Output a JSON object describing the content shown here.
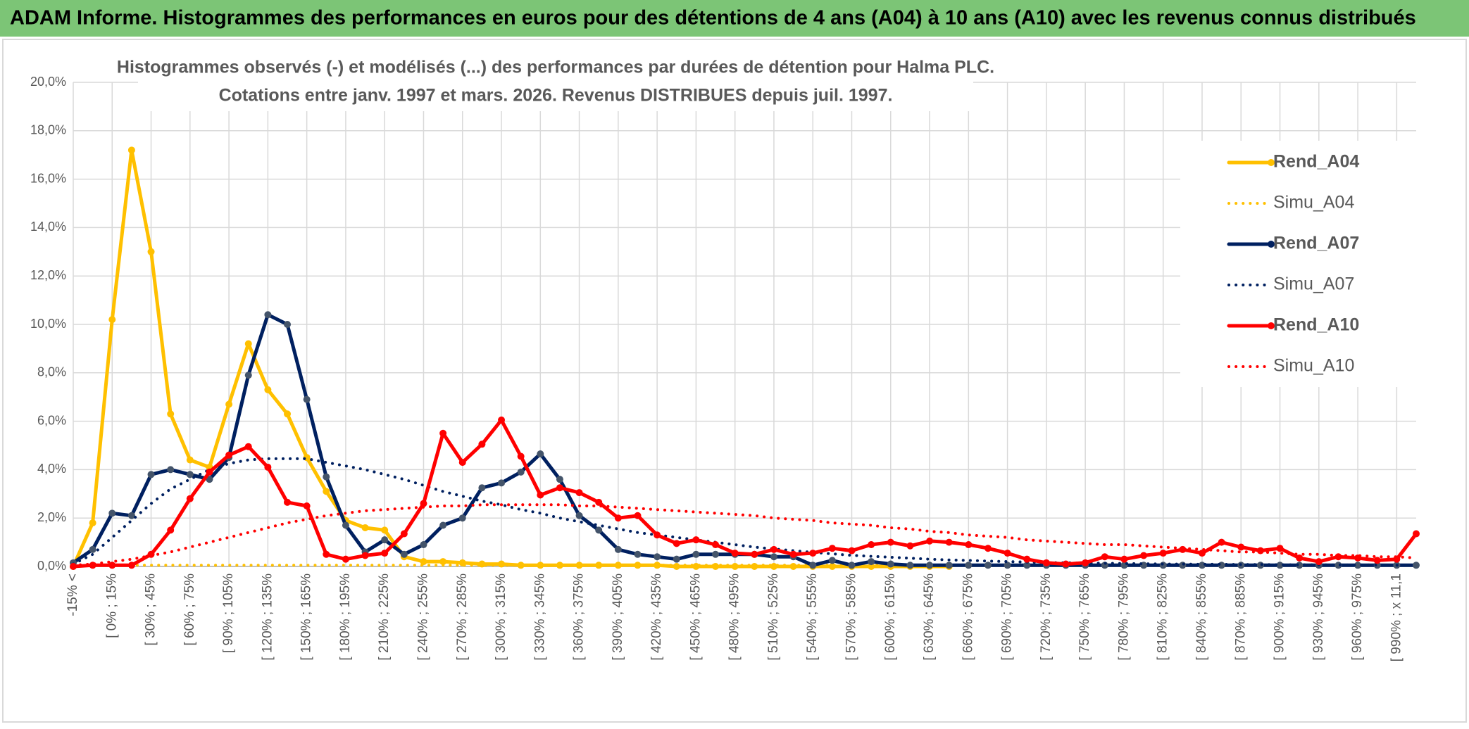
{
  "chart_data": {
    "type": "line",
    "header": "ADAM Informe. Histogrammes des performances en euros pour des détentions de 4 ans (A04) à 10 ans (A10) avec les revenus connus distribués",
    "title": "Histogrammes observés (-) et modélisés (...) des performances par durées de détention pour Halma PLC.",
    "subtitle": "Cotations entre janv. 1997 et mars. 2026. Revenus DISTRIBUES depuis juil. 1997.",
    "categories": [
      "-15% <",
      null,
      "[ 0% ; 15%",
      null,
      "[ 30% ; 45%",
      null,
      "[ 60% ; 75%",
      null,
      "[ 90% ; 105%",
      null,
      "[ 120% ; 135%",
      null,
      "[ 150% ; 165%",
      null,
      "[ 180% ; 195%",
      null,
      "[ 210% ; 225%",
      null,
      "[ 240% ; 255%",
      null,
      "[ 270% ; 285%",
      null,
      "[ 300% ; 315%",
      null,
      "[ 330% ; 345%",
      null,
      "[ 360% ; 375%",
      null,
      "[ 390% ; 405%",
      null,
      "[ 420% ; 435%",
      null,
      "[ 450% ; 465%",
      null,
      "[ 480% ; 495%",
      null,
      "[ 510% ; 525%",
      null,
      "[ 540% ; 555%",
      null,
      "[ 570% ; 585%",
      null,
      "[ 600% ; 615%",
      null,
      "[ 630% ; 645%",
      null,
      "[ 660% ; 675%",
      null,
      "[ 690% ; 705%",
      null,
      "[ 720% ; 735%",
      null,
      "[ 750% ; 765%",
      null,
      "[ 780% ; 795%",
      null,
      "[ 810% ; 825%",
      null,
      "[ 840% ; 855%",
      null,
      "[ 870% ; 885%",
      null,
      "[ 900% ; 915%",
      null,
      "[ 930% ; 945%",
      null,
      "[ 960% ; 975%",
      null,
      "[ 990% ; x 11,1",
      null
    ],
    "series": [
      {
        "name": "Rend_A04",
        "color": "#ffc000",
        "style": "solid",
        "values": [
          0,
          1.8,
          10.2,
          17.2,
          13.0,
          6.3,
          4.4,
          4.1,
          6.7,
          9.2,
          7.3,
          6.3,
          4.5,
          3.1,
          1.9,
          1.6,
          1.5,
          0.4,
          0.2,
          0.2,
          0.15,
          0.1,
          0.1,
          0.05,
          0.05,
          0.05,
          0.05,
          0.05,
          0.05,
          0.05,
          0.05,
          0,
          0,
          0,
          0,
          0,
          0,
          0,
          0,
          0,
          0,
          0,
          0,
          0,
          0,
          0,
          null,
          null,
          null,
          null,
          null,
          null,
          null,
          null,
          null,
          null,
          null,
          null,
          null,
          null,
          null,
          null,
          null,
          null,
          null,
          null,
          null,
          null,
          null,
          null
        ]
      },
      {
        "name": "Simu_A04",
        "color": "#ffc000",
        "style": "dotted",
        "values": [
          0.05,
          0.05,
          0.05,
          0.05,
          0.05,
          0.05,
          0.05,
          0.05,
          0.05,
          0.05,
          0.05,
          0.05,
          0.05,
          0.05,
          0.05,
          0.05,
          0.05,
          0.05,
          0.05,
          0.05,
          0.05,
          0.05,
          0.05,
          0.05,
          0.05,
          0.05,
          0.05,
          0.05,
          0.05,
          0.05,
          0.05,
          0.05,
          0.05,
          0.05,
          0.05,
          0.05,
          0.05,
          0.05,
          0.05,
          0.05,
          0.05,
          0.05,
          0.05,
          0.05,
          null,
          null,
          null,
          null,
          null,
          null,
          null,
          null,
          null,
          null,
          null,
          null,
          null,
          null,
          null,
          null,
          null,
          null,
          null,
          null,
          null,
          null,
          null,
          null,
          null,
          null
        ]
      },
      {
        "name": "Rend_A07",
        "color": "#002060",
        "style": "solid",
        "values": [
          0.15,
          0.7,
          2.2,
          2.1,
          3.8,
          4.0,
          3.8,
          3.6,
          4.5,
          7.9,
          10.4,
          10.0,
          6.9,
          3.7,
          1.7,
          0.6,
          1.1,
          0.5,
          0.9,
          1.7,
          2.0,
          3.25,
          3.45,
          3.9,
          4.65,
          3.6,
          2.1,
          1.5,
          0.7,
          0.5,
          0.4,
          0.3,
          0.5,
          0.5,
          0.5,
          0.5,
          0.4,
          0.4,
          0.05,
          0.25,
          0.05,
          0.2,
          0.1,
          0.05,
          0.05,
          0.05,
          0.05,
          0.05,
          0.05,
          0.05,
          0.05,
          0.05,
          0.05,
          0.05,
          0.05,
          0.05,
          0.05,
          0.05,
          0.05,
          0.05,
          0.05,
          0.05,
          0.05,
          0.05,
          0.05,
          0.05,
          0.05,
          0.05,
          0.05,
          0.05
        ]
      },
      {
        "name": "Simu_A07",
        "color": "#002060",
        "style": "dotted",
        "values": [
          0.1,
          0.5,
          1.2,
          1.9,
          2.6,
          3.2,
          3.6,
          4.0,
          4.25,
          4.4,
          4.45,
          4.45,
          4.45,
          4.3,
          4.15,
          4.0,
          3.8,
          3.6,
          3.35,
          3.1,
          2.9,
          2.7,
          2.55,
          2.35,
          2.2,
          2.0,
          1.85,
          1.7,
          1.55,
          1.4,
          1.3,
          1.2,
          1.1,
          1.0,
          0.9,
          0.8,
          0.72,
          0.65,
          0.58,
          0.52,
          0.46,
          0.42,
          0.38,
          0.34,
          0.3,
          0.27,
          0.25,
          0.22,
          0.2,
          0.18,
          0.16,
          0.15,
          0.14,
          0.13,
          0.12,
          0.11,
          0.1,
          0.1,
          0.09,
          0.09,
          0.08,
          0.08,
          0.07,
          0.07,
          0.07,
          0.06,
          0.06,
          0.06,
          0.05,
          0.05
        ]
      },
      {
        "name": "Rend_A10",
        "color": "#ff0000",
        "style": "solid",
        "values": [
          0,
          0.05,
          0.05,
          0.05,
          0.5,
          1.5,
          2.8,
          3.9,
          4.6,
          4.95,
          4.1,
          2.65,
          2.5,
          0.5,
          0.3,
          0.45,
          0.55,
          1.35,
          2.6,
          5.5,
          4.3,
          5.05,
          6.05,
          4.55,
          2.95,
          3.25,
          3.05,
          2.65,
          2.0,
          2.1,
          1.3,
          0.95,
          1.1,
          0.9,
          0.55,
          0.5,
          0.7,
          0.5,
          0.55,
          0.75,
          0.65,
          0.9,
          1.0,
          0.85,
          1.05,
          1.0,
          0.9,
          0.75,
          0.55,
          0.3,
          0.15,
          0.1,
          0.15,
          0.4,
          0.3,
          0.45,
          0.55,
          0.7,
          0.55,
          1.0,
          0.8,
          0.65,
          0.75,
          0.35,
          0.2,
          0.4,
          0.35,
          0.25,
          0.3,
          1.35
        ]
      },
      {
        "name": "Simu_A10",
        "color": "#ff0000",
        "style": "dotted",
        "values": [
          0.05,
          0.1,
          0.2,
          0.3,
          0.45,
          0.6,
          0.8,
          1.0,
          1.2,
          1.4,
          1.6,
          1.8,
          1.95,
          2.1,
          2.2,
          2.3,
          2.35,
          2.4,
          2.45,
          2.5,
          2.5,
          2.55,
          2.55,
          2.55,
          2.55,
          2.55,
          2.5,
          2.5,
          2.45,
          2.4,
          2.35,
          2.3,
          2.25,
          2.2,
          2.15,
          2.1,
          2.0,
          1.95,
          1.9,
          1.8,
          1.75,
          1.7,
          1.6,
          1.55,
          1.45,
          1.4,
          1.3,
          1.25,
          1.2,
          1.1,
          1.05,
          1.0,
          0.95,
          0.9,
          0.9,
          0.85,
          0.8,
          0.75,
          0.7,
          0.65,
          0.6,
          0.6,
          0.55,
          0.5,
          0.5,
          0.45,
          0.45,
          0.4,
          0.4,
          0.35
        ]
      }
    ],
    "ylim": [
      0,
      20
    ],
    "yticks": [
      {
        "value": 0,
        "label": "0,0%"
      },
      {
        "value": 2,
        "label": "2,0%"
      },
      {
        "value": 4,
        "label": "4,0%"
      },
      {
        "value": 6,
        "label": "6,0%"
      },
      {
        "value": 8,
        "label": "8,0%"
      },
      {
        "value": 10,
        "label": "10,0%"
      },
      {
        "value": 12,
        "label": "12,0%"
      },
      {
        "value": 14,
        "label": "14,0%"
      },
      {
        "value": 16,
        "label": "16,0%"
      },
      {
        "value": 18,
        "label": "18,0%"
      },
      {
        "value": 20,
        "label": "20,0%"
      }
    ],
    "grid": true,
    "legend": "right"
  }
}
